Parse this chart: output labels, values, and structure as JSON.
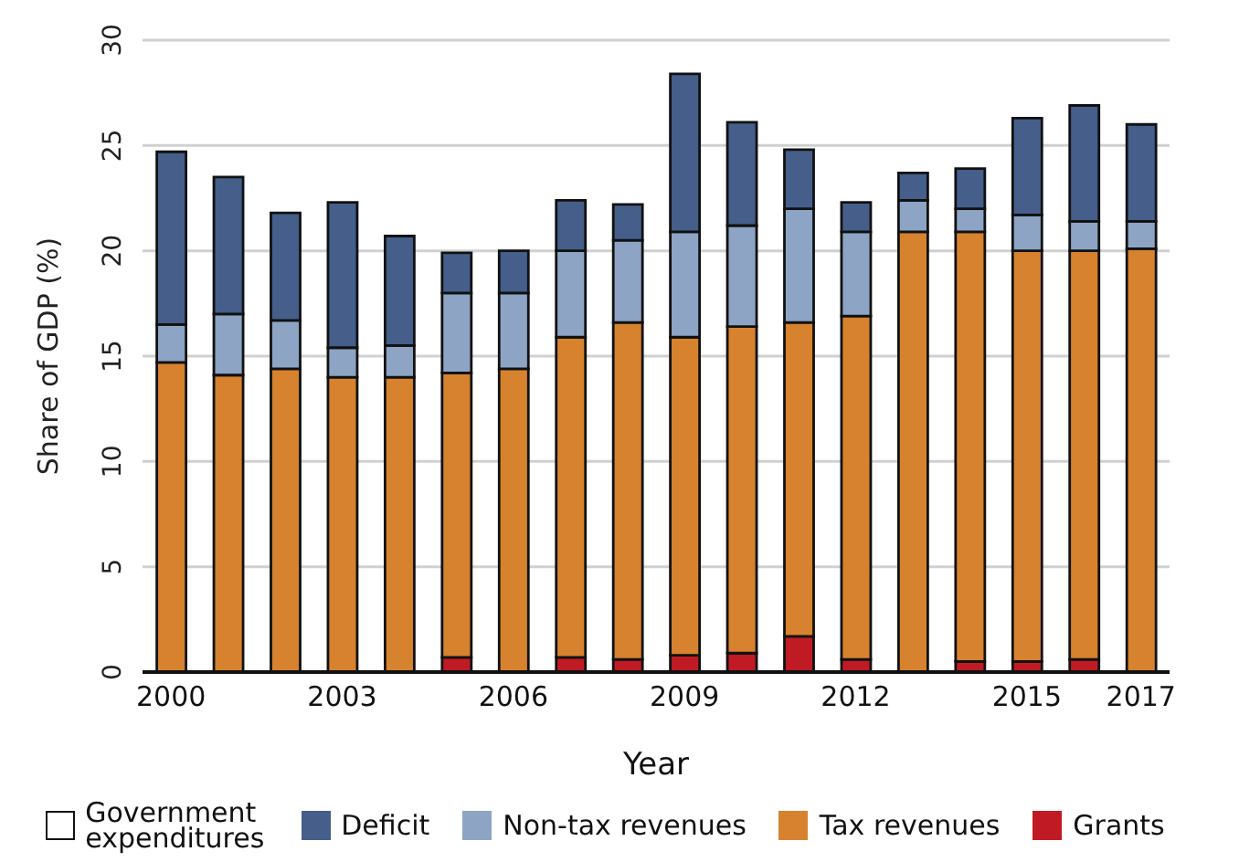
{
  "chart_data": {
    "type": "bar",
    "stacked": true,
    "xlabel": "Year",
    "ylabel": "Share of GDP (%)",
    "categories": [
      "2000",
      null,
      null,
      "2003",
      null,
      null,
      "2006",
      null,
      null,
      "2009",
      null,
      null,
      "2012",
      null,
      null,
      "2015",
      null,
      "2017"
    ],
    "series": [
      {
        "name": "Grants",
        "color": "#c01b24",
        "values": [
          0,
          0,
          0,
          0,
          0,
          0.7,
          0,
          0.7,
          0.6,
          0.8,
          0.9,
          1.7,
          0.6,
          0,
          0.5,
          0.5,
          0.6,
          0
        ]
      },
      {
        "name": "Tax revenues",
        "color": "#d6822e",
        "values": [
          14.7,
          14.1,
          14.4,
          14.0,
          14.0,
          13.5,
          14.4,
          15.2,
          16.0,
          15.1,
          15.5,
          14.9,
          16.3,
          20.9,
          20.4,
          19.5,
          19.4,
          20.1
        ]
      },
      {
        "name": "Non-tax revenues",
        "color": "#8da4c4",
        "values": [
          1.8,
          2.9,
          2.3,
          1.4,
          1.5,
          3.8,
          3.6,
          4.1,
          3.9,
          5.0,
          4.8,
          5.4,
          4.0,
          1.5,
          1.1,
          1.7,
          1.4,
          1.3
        ]
      },
      {
        "name": "Deficit",
        "color": "#455e8a",
        "values": [
          8.2,
          6.5,
          5.1,
          6.9,
          5.2,
          1.9,
          2.0,
          2.4,
          1.7,
          7.5,
          4.9,
          2.8,
          1.4,
          1.3,
          1.9,
          4.6,
          5.5,
          4.6
        ]
      }
    ],
    "annotations": [
      "Government expenditures"
    ],
    "ylim": [
      0,
      30
    ],
    "yticks": [
      0,
      5,
      10,
      15,
      20,
      25,
      30
    ],
    "grid": "y",
    "legend": "bottom"
  }
}
